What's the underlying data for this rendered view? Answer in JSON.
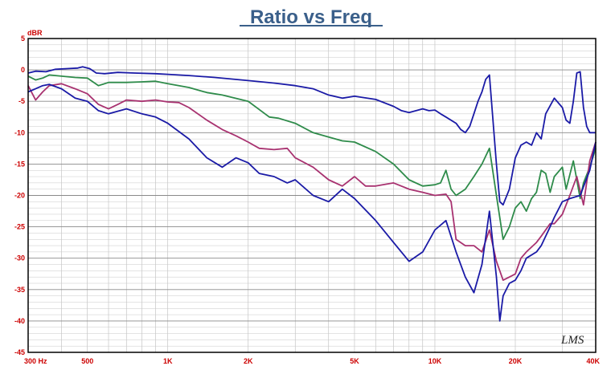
{
  "chart_data": {
    "type": "line",
    "title": "Ratio vs Freq",
    "ylabel": "dBR",
    "xlabel": "",
    "x_scale": "log",
    "xlim": [
      300,
      40000
    ],
    "ylim": [
      -45,
      5
    ],
    "grid": true,
    "x_tick_labels": [
      {
        "v": 300,
        "t": "300  Hz"
      },
      {
        "v": 500,
        "t": "500"
      },
      {
        "v": 1000,
        "t": "1K"
      },
      {
        "v": 2000,
        "t": "2K"
      },
      {
        "v": 5000,
        "t": "5K"
      },
      {
        "v": 10000,
        "t": "10K"
      },
      {
        "v": 20000,
        "t": "20K"
      },
      {
        "v": 40000,
        "t": "40K"
      }
    ],
    "y_ticks": [
      5,
      0,
      -5,
      -10,
      -15,
      -20,
      -25,
      -30,
      -35,
      -40,
      -45
    ],
    "series": [
      {
        "color": "#1a1aa6",
        "points": [
          [
            300,
            -0.5
          ],
          [
            320,
            -0.2
          ],
          [
            350,
            -0.3
          ],
          [
            380,
            0.1
          ],
          [
            420,
            0.2
          ],
          [
            460,
            0.3
          ],
          [
            480,
            0.5
          ],
          [
            510,
            0.2
          ],
          [
            540,
            -0.5
          ],
          [
            580,
            -0.6
          ],
          [
            650,
            -0.4
          ],
          [
            750,
            -0.5
          ],
          [
            900,
            -0.6
          ],
          [
            1000,
            -0.7
          ],
          [
            1200,
            -0.9
          ],
          [
            1500,
            -1.2
          ],
          [
            2000,
            -1.7
          ],
          [
            2500,
            -2.1
          ],
          [
            3000,
            -2.5
          ],
          [
            3500,
            -3.0
          ],
          [
            4000,
            -4.0
          ],
          [
            4500,
            -4.5
          ],
          [
            5000,
            -4.2
          ],
          [
            6000,
            -4.7
          ],
          [
            7000,
            -5.8
          ],
          [
            7500,
            -6.5
          ],
          [
            8000,
            -6.8
          ],
          [
            8500,
            -6.5
          ],
          [
            9000,
            -6.2
          ],
          [
            9500,
            -6.5
          ],
          [
            10000,
            -6.4
          ],
          [
            10500,
            -7.0
          ],
          [
            11000,
            -7.5
          ],
          [
            12000,
            -8.5
          ],
          [
            12500,
            -9.5
          ],
          [
            13000,
            -10.0
          ],
          [
            13500,
            -9.0
          ],
          [
            14000,
            -7.0
          ],
          [
            14500,
            -5.0
          ],
          [
            15000,
            -3.5
          ],
          [
            15500,
            -1.5
          ],
          [
            16000,
            -0.8
          ],
          [
            16500,
            -8.0
          ],
          [
            17000,
            -15.0
          ],
          [
            17500,
            -21.0
          ],
          [
            18000,
            -21.5
          ],
          [
            19000,
            -19.0
          ],
          [
            20000,
            -14.0
          ],
          [
            21000,
            -12.0
          ],
          [
            22000,
            -11.5
          ],
          [
            23000,
            -12.0
          ],
          [
            24000,
            -10.0
          ],
          [
            25000,
            -11.0
          ],
          [
            26000,
            -7.0
          ],
          [
            28000,
            -4.5
          ],
          [
            30000,
            -6.0
          ],
          [
            31000,
            -8.0
          ],
          [
            32000,
            -8.5
          ],
          [
            33000,
            -5.0
          ],
          [
            34000,
            -0.5
          ],
          [
            35000,
            -0.3
          ],
          [
            36000,
            -6.0
          ],
          [
            37000,
            -9.0
          ],
          [
            38000,
            -10.0
          ],
          [
            40000,
            -10.0
          ]
        ]
      },
      {
        "color": "#2e8b4a",
        "points": [
          [
            300,
            -1.0
          ],
          [
            320,
            -1.6
          ],
          [
            340,
            -1.3
          ],
          [
            360,
            -0.8
          ],
          [
            400,
            -1.0
          ],
          [
            450,
            -1.2
          ],
          [
            500,
            -1.3
          ],
          [
            550,
            -2.5
          ],
          [
            600,
            -2.0
          ],
          [
            700,
            -2.0
          ],
          [
            800,
            -1.9
          ],
          [
            900,
            -1.8
          ],
          [
            1000,
            -2.2
          ],
          [
            1200,
            -2.8
          ],
          [
            1400,
            -3.6
          ],
          [
            1600,
            -4.0
          ],
          [
            2000,
            -5.0
          ],
          [
            2400,
            -7.5
          ],
          [
            2600,
            -7.7
          ],
          [
            3000,
            -8.5
          ],
          [
            3500,
            -10.0
          ],
          [
            4000,
            -10.7
          ],
          [
            4500,
            -11.3
          ],
          [
            5000,
            -11.5
          ],
          [
            6000,
            -13.0
          ],
          [
            7000,
            -15.0
          ],
          [
            8000,
            -17.5
          ],
          [
            9000,
            -18.5
          ],
          [
            10000,
            -18.3
          ],
          [
            10500,
            -18.0
          ],
          [
            11000,
            -16.0
          ],
          [
            11500,
            -19.0
          ],
          [
            12000,
            -20.0
          ],
          [
            13000,
            -19.0
          ],
          [
            14000,
            -17.0
          ],
          [
            15000,
            -15.0
          ],
          [
            16000,
            -12.5
          ],
          [
            17000,
            -20.0
          ],
          [
            18000,
            -27.0
          ],
          [
            19000,
            -25.0
          ],
          [
            20000,
            -22.0
          ],
          [
            21000,
            -21.0
          ],
          [
            22000,
            -22.5
          ],
          [
            23000,
            -20.5
          ],
          [
            24000,
            -19.5
          ],
          [
            25000,
            -16.0
          ],
          [
            26000,
            -16.5
          ],
          [
            27000,
            -19.5
          ],
          [
            28000,
            -17.0
          ],
          [
            30000,
            -15.5
          ],
          [
            31000,
            -19.0
          ],
          [
            33000,
            -14.5
          ],
          [
            35000,
            -20.5
          ],
          [
            36000,
            -18.0
          ],
          [
            38000,
            -15.5
          ],
          [
            40000,
            -12.5
          ]
        ]
      },
      {
        "color": "#a83270",
        "points": [
          [
            300,
            -2.5
          ],
          [
            320,
            -4.8
          ],
          [
            340,
            -3.5
          ],
          [
            360,
            -2.5
          ],
          [
            400,
            -2.2
          ],
          [
            450,
            -3.0
          ],
          [
            500,
            -3.8
          ],
          [
            550,
            -5.5
          ],
          [
            600,
            -6.2
          ],
          [
            650,
            -5.5
          ],
          [
            700,
            -4.8
          ],
          [
            800,
            -5.0
          ],
          [
            900,
            -4.8
          ],
          [
            1000,
            -5.1
          ],
          [
            1100,
            -5.2
          ],
          [
            1200,
            -6.0
          ],
          [
            1400,
            -8.0
          ],
          [
            1600,
            -9.5
          ],
          [
            1800,
            -10.5
          ],
          [
            2000,
            -11.5
          ],
          [
            2200,
            -12.5
          ],
          [
            2500,
            -12.7
          ],
          [
            2800,
            -12.5
          ],
          [
            3000,
            -14.0
          ],
          [
            3500,
            -15.5
          ],
          [
            4000,
            -17.5
          ],
          [
            4500,
            -18.5
          ],
          [
            5000,
            -17.0
          ],
          [
            5500,
            -18.5
          ],
          [
            6000,
            -18.5
          ],
          [
            7000,
            -18.0
          ],
          [
            8000,
            -19.0
          ],
          [
            9000,
            -19.5
          ],
          [
            10000,
            -20.0
          ],
          [
            11000,
            -19.8
          ],
          [
            11500,
            -21.0
          ],
          [
            12000,
            -27.0
          ],
          [
            13000,
            -28.0
          ],
          [
            14000,
            -28.0
          ],
          [
            15000,
            -29.0
          ],
          [
            16000,
            -25.5
          ],
          [
            17000,
            -30.5
          ],
          [
            18000,
            -33.5
          ],
          [
            19000,
            -33.0
          ],
          [
            20000,
            -32.5
          ],
          [
            21000,
            -30.0
          ],
          [
            22000,
            -29.0
          ],
          [
            24000,
            -27.5
          ],
          [
            25000,
            -26.5
          ],
          [
            27000,
            -24.5
          ],
          [
            28000,
            -24.5
          ],
          [
            30000,
            -23.0
          ],
          [
            32000,
            -20.0
          ],
          [
            34000,
            -17.0
          ],
          [
            36000,
            -21.5
          ],
          [
            38000,
            -14.5
          ],
          [
            40000,
            -11.5
          ]
        ]
      },
      {
        "color": "#1a1aa6",
        "points": [
          [
            300,
            -3.5
          ],
          [
            320,
            -3.0
          ],
          [
            340,
            -2.5
          ],
          [
            360,
            -2.3
          ],
          [
            400,
            -3.0
          ],
          [
            450,
            -4.5
          ],
          [
            500,
            -5.0
          ],
          [
            550,
            -6.5
          ],
          [
            600,
            -7.0
          ],
          [
            700,
            -6.2
          ],
          [
            800,
            -7.0
          ],
          [
            900,
            -7.5
          ],
          [
            1000,
            -8.5
          ],
          [
            1200,
            -11.0
          ],
          [
            1400,
            -14.0
          ],
          [
            1600,
            -15.5
          ],
          [
            1800,
            -14.0
          ],
          [
            2000,
            -14.8
          ],
          [
            2200,
            -16.5
          ],
          [
            2500,
            -17.0
          ],
          [
            2800,
            -18.0
          ],
          [
            3000,
            -17.5
          ],
          [
            3500,
            -20.0
          ],
          [
            4000,
            -21.0
          ],
          [
            4500,
            -19.0
          ],
          [
            5000,
            -20.5
          ],
          [
            6000,
            -24.0
          ],
          [
            7000,
            -27.5
          ],
          [
            8000,
            -30.5
          ],
          [
            9000,
            -29.0
          ],
          [
            10000,
            -25.5
          ],
          [
            11000,
            -24.0
          ],
          [
            12000,
            -29.0
          ],
          [
            13000,
            -33.0
          ],
          [
            14000,
            -35.5
          ],
          [
            15000,
            -31.0
          ],
          [
            16000,
            -22.5
          ],
          [
            17000,
            -33.0
          ],
          [
            17500,
            -40.0
          ],
          [
            18000,
            -36.0
          ],
          [
            19000,
            -34.0
          ],
          [
            20000,
            -33.5
          ],
          [
            21000,
            -32.0
          ],
          [
            22000,
            -30.0
          ],
          [
            24000,
            -29.0
          ],
          [
            25000,
            -28.0
          ],
          [
            27000,
            -25.0
          ],
          [
            28000,
            -23.5
          ],
          [
            30000,
            -21.0
          ],
          [
            32000,
            -20.5
          ],
          [
            35000,
            -20.0
          ],
          [
            38000,
            -16.0
          ],
          [
            40000,
            -11.5
          ]
        ]
      }
    ]
  },
  "logo_text": "LMS"
}
